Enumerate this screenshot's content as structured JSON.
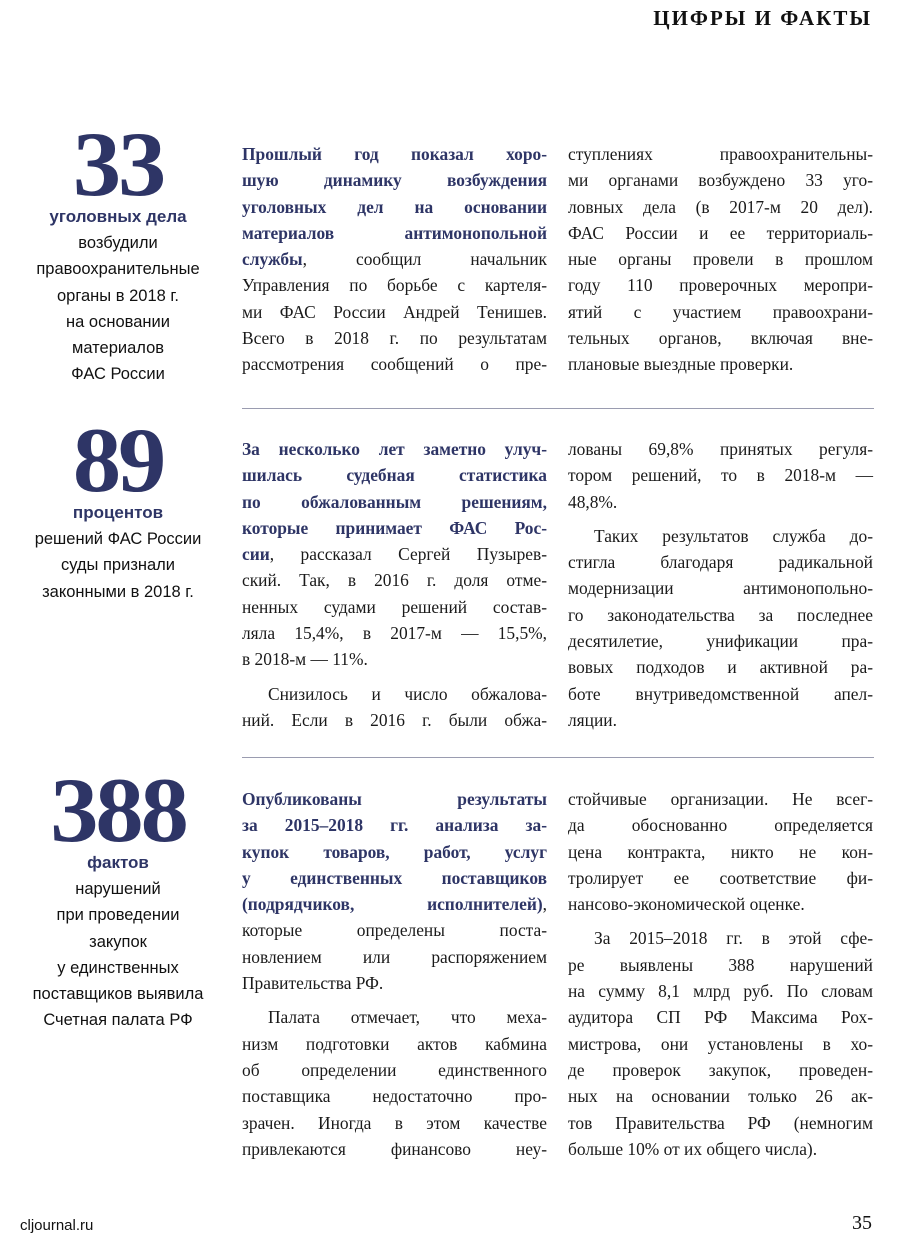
{
  "header": {
    "title": "ЦИФРЫ И ФАКТЫ"
  },
  "colors": {
    "accent": "#2e3566",
    "rule": "#9a9cb0"
  },
  "sections": [
    {
      "number": "33",
      "unit": "уголовных дела",
      "description": [
        "возбудили",
        "правоохранительные",
        "органы в 2018 г.",
        "на основании",
        "материалов",
        "ФАС России"
      ],
      "columns": [
        [
          [
            {
              "b": "Прошлый год показал хоро-"
            },
            {
              "b": "шую динамику возбуждения"
            },
            {
              "b": "уголовных дел на основании"
            },
            {
              "b": "материалов антимонопольной"
            },
            {
              "b": "службы",
              "t": ", сообщил начальник"
            },
            "Управления по борьбе с картеля-",
            "ми ФАС России Андрей Тенишев.",
            "Всего в 2018 г. по результатам",
            "рассмотрения сообщений о пре-"
          ]
        ],
        [
          [
            "ступлениях правоохранительны-",
            "ми органами возбуждено 33 уго-",
            "ловных дела (в 2017-м 20 дел).",
            "ФАС России и ее территориаль-",
            "ные органы провели в прошлом",
            "году 110 проверочных меропри-",
            "ятий с участием правоохрани-",
            "тельных органов, включая вне-",
            "плановые выездные проверки."
          ]
        ]
      ]
    },
    {
      "number": "89",
      "unit": "процентов",
      "description": [
        "решений ФАС России",
        "суды признали",
        "законными в 2018 г."
      ],
      "columns": [
        [
          [
            {
              "b": "За несколько лет заметно улуч-"
            },
            {
              "b": "шилась судебная статистика"
            },
            {
              "b": "по обжалованным решениям,"
            },
            {
              "b": "которые принимает ФАС Рос-"
            },
            {
              "b": "сии",
              "t": ", рассказал Сергей Пузырев-"
            },
            "ский. Так, в 2016 г. доля отме-",
            "ненных судами решений состав-",
            "ляла 15,4%, в 2017-м — 15,5%,",
            "в 2018-м — 11%."
          ],
          [
            "Снизилось и число обжалова-",
            "ний. Если в 2016 г. были обжа-"
          ]
        ],
        [
          [
            "лованы 69,8% принятых регуля-",
            "тором решений, то в 2018-м —",
            "48,8%."
          ],
          [
            "Таких результатов служба до-",
            "стигла благодаря радикальной",
            "модернизации антимонопольно-",
            "го законодательства за последнее",
            "десятилетие, унификации пра-",
            "вовых подходов и активной ра-",
            "боте внутриведомственной апел-",
            "ляции."
          ]
        ]
      ]
    },
    {
      "number": "388",
      "unit": "фактов",
      "description": [
        "нарушений",
        "при проведении",
        "закупок",
        "у единственных",
        "поставщиков выявила",
        "Счетная палата РФ"
      ],
      "columns": [
        [
          [
            {
              "b": "Опубликованы результаты"
            },
            {
              "b": "за 2015–2018 гг. анализа за-"
            },
            {
              "b": "купок товаров, работ, услуг"
            },
            {
              "b": "у единственных поставщиков"
            },
            {
              "b": "(подрядчиков, исполнителей)",
              "t": ","
            },
            "которые определены поста-",
            "новлением или распоряжением",
            "Правительства РФ."
          ],
          [
            "Палата отмечает, что меха-",
            "низм подготовки актов кабмина",
            "об определении единственного",
            "поставщика недостаточно про-",
            "зрачен. Иногда в этом качестве",
            "привлекаются финансово неу-"
          ]
        ],
        [
          [
            "стойчивые организации. Не всег-",
            "да обоснованно определяется",
            "цена контракта, никто не кон-",
            "тролирует ее соответствие фи-",
            "нансово-экономической оценке."
          ],
          [
            "За 2015–2018 гг. в этой сфе-",
            "ре выявлены 388 нарушений",
            "на сумму 8,1 млрд руб. По словам",
            "аудитора СП РФ Максима Рох-",
            "мистрова, они установлены в хо-",
            "де проверок закупок, проведен-",
            "ных на основании только 26 ак-",
            "тов Правительства РФ (немногим",
            "больше 10% от их общего числа)."
          ]
        ]
      ]
    }
  ],
  "footer": {
    "site": "cljournal.ru",
    "page": "35"
  }
}
